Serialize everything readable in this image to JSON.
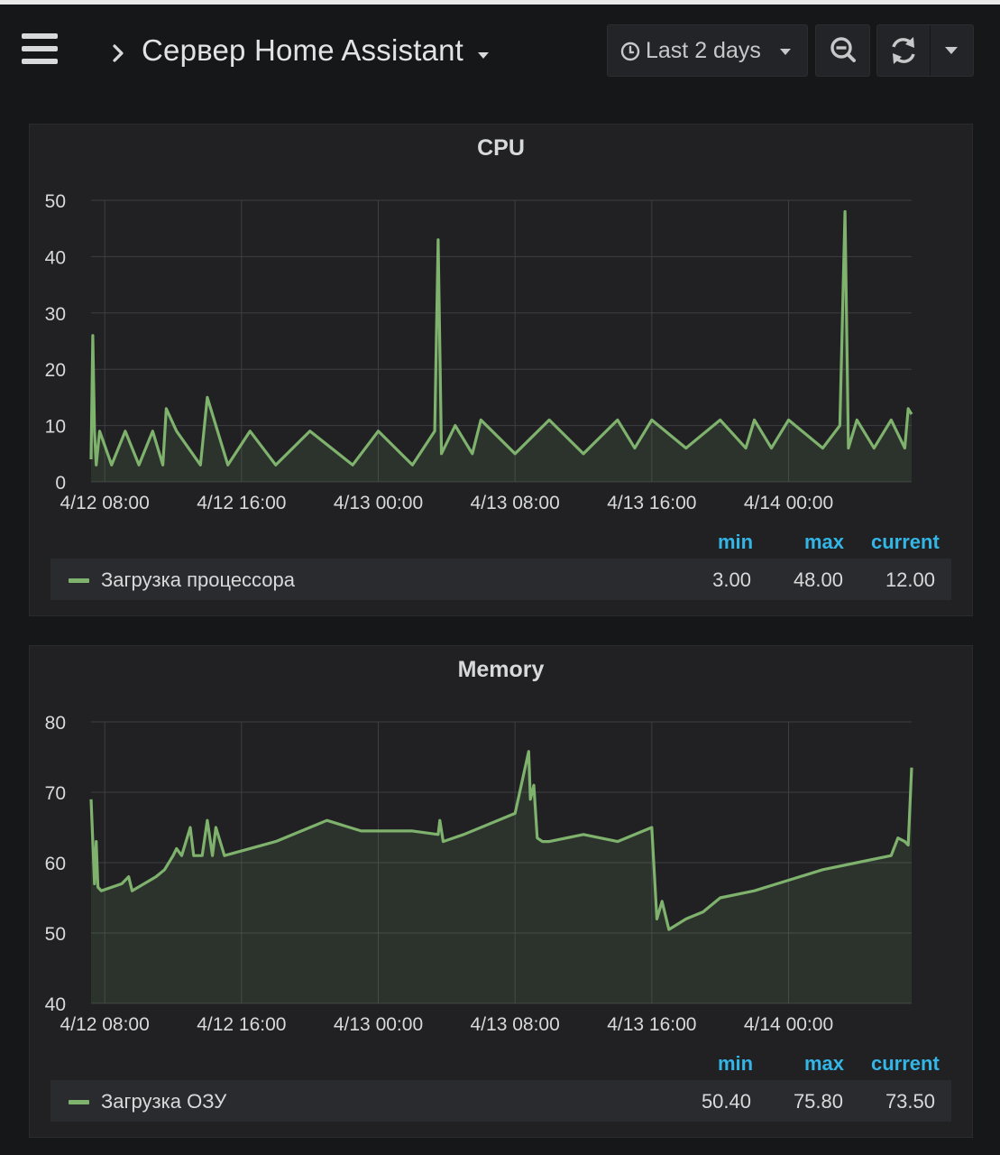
{
  "header": {
    "dashboard_title": "Сервер Home Assistant",
    "time_range_label": "Last 2 days",
    "icons": {
      "menu": "hamburger-icon",
      "breadcrumb": "chevron-right-icon",
      "title_dropdown": "caret-down-icon",
      "time": "clock-icon",
      "zoom": "zoom-out-icon",
      "refresh": "refresh-icon",
      "refresh_menu": "caret-down-icon"
    }
  },
  "colors": {
    "series": "#7eb26d",
    "legend_header": "#33b5e5",
    "background": "#161719",
    "panel": "#212124"
  },
  "chart_data": [
    {
      "type": "line",
      "title": "CPU",
      "x_tick_labels": [
        "4/12 08:00",
        "4/12 16:00",
        "4/13 00:00",
        "4/13 08:00",
        "4/13 16:00",
        "4/14 00:00"
      ],
      "x_ticks_hours": [
        0,
        8,
        16,
        24,
        32,
        40
      ],
      "xlim_hours_from_first_tick": [
        -0.8,
        47.2
      ],
      "ylim": [
        0,
        50
      ],
      "y_ticks": [
        0,
        10,
        20,
        30,
        40,
        50
      ],
      "grid": true,
      "fill": true,
      "series": [
        {
          "name": "Загрузка процессора",
          "x": [
            -0.8,
            -0.7,
            -0.6,
            -0.5,
            -0.3,
            0.4,
            1.2,
            2,
            2.8,
            3.4,
            3.6,
            4.2,
            5.6,
            6,
            7.2,
            8.5,
            10,
            12,
            14.5,
            16,
            18,
            19.3,
            19.5,
            19.7,
            20.5,
            21.5,
            22,
            24,
            26,
            28,
            30,
            31,
            32,
            34,
            36,
            37.5,
            38,
            39,
            40,
            42,
            43,
            43.3,
            43.5,
            44,
            45,
            46,
            46.8,
            47,
            47.2
          ],
          "values": [
            4,
            26,
            9,
            3,
            9,
            3,
            9,
            3,
            9,
            3,
            13,
            9,
            3,
            15,
            3,
            9,
            3,
            9,
            3,
            9,
            3,
            9,
            43,
            5,
            10,
            5,
            11,
            5,
            11,
            5,
            11,
            6,
            11,
            6,
            11,
            6,
            11,
            6,
            11,
            6,
            10,
            48,
            6,
            11,
            6,
            11,
            6,
            13,
            12
          ]
        }
      ],
      "legend": {
        "placement": "bottom",
        "headers": [
          "min",
          "max",
          "current"
        ],
        "min": "3.00",
        "max": "48.00",
        "current": "12.00"
      }
    },
    {
      "type": "line",
      "title": "Memory",
      "x_tick_labels": [
        "4/12 08:00",
        "4/12 16:00",
        "4/13 00:00",
        "4/13 08:00",
        "4/13 16:00",
        "4/14 00:00"
      ],
      "x_ticks_hours": [
        0,
        8,
        16,
        24,
        32,
        40
      ],
      "xlim_hours_from_first_tick": [
        -0.8,
        47.2
      ],
      "ylim": [
        40,
        80
      ],
      "y_ticks": [
        40,
        50,
        60,
        70,
        80
      ],
      "grid": true,
      "fill": true,
      "series": [
        {
          "name": "Загрузка ОЗУ",
          "x": [
            -0.8,
            -0.6,
            -0.5,
            -0.4,
            -0.2,
            1,
            1.4,
            1.6,
            3,
            3.5,
            4,
            4.2,
            4.5,
            5,
            5.2,
            5.7,
            6,
            6.3,
            6.5,
            7,
            10,
            12,
            13,
            15,
            18,
            19.5,
            19.6,
            19.8,
            21,
            24,
            24.8,
            24.9,
            25.1,
            25.3,
            25.6,
            26,
            28,
            30,
            32,
            32.3,
            32.6,
            33,
            34,
            35,
            36,
            38,
            40,
            42,
            44,
            46,
            46.4,
            46.8,
            47,
            47.2
          ],
          "values": [
            69,
            57,
            63,
            56.5,
            56,
            57,
            58,
            56,
            58,
            59,
            61,
            62,
            61,
            65,
            61,
            61,
            66,
            61,
            65,
            61,
            63,
            65,
            66,
            64.5,
            64.5,
            64,
            66,
            63,
            64,
            67,
            75.8,
            69,
            71,
            63.5,
            63,
            63,
            64,
            63,
            65,
            52,
            54.5,
            50.5,
            52,
            53,
            55,
            56,
            57.5,
            59,
            60,
            61,
            63.5,
            63,
            62.5,
            73.5
          ]
        }
      ],
      "legend": {
        "placement": "bottom",
        "headers": [
          "min",
          "max",
          "current"
        ],
        "min": "50.40",
        "max": "75.80",
        "current": "73.50"
      }
    }
  ]
}
